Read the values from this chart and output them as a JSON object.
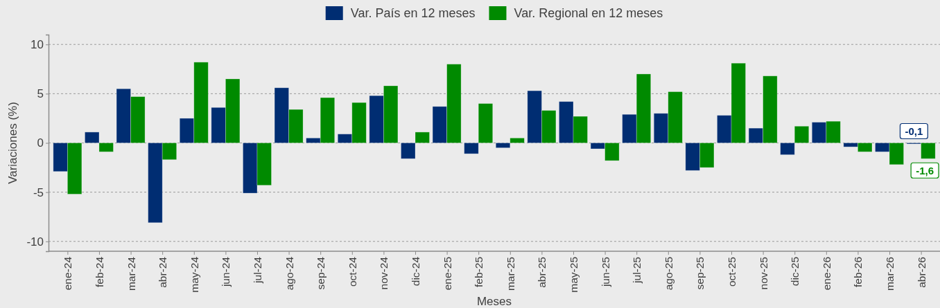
{
  "chart_data": {
    "type": "bar",
    "xlabel": "Meses",
    "ylabel": "Variaciones (%)",
    "categories": [
      "ene-24",
      "feb-24",
      "mar-24",
      "abr-24",
      "may-24",
      "jun-24",
      "jul-24",
      "ago-24",
      "sep-24",
      "oct-24",
      "nov-24",
      "dic-24",
      "ene-25",
      "feb-25",
      "mar-25",
      "abr-25",
      "may-25",
      "jun-25",
      "jul-25",
      "ago-25",
      "sep-25",
      "oct-25",
      "nov-25",
      "dic-25",
      "ene-26",
      "feb-26",
      "mar-26",
      "abr-26"
    ],
    "series": [
      {
        "name": "Var. País en 12 meses",
        "color": "#002d72",
        "values": [
          -2.9,
          1.1,
          5.5,
          -8.1,
          2.5,
          3.6,
          -5.1,
          5.6,
          0.5,
          0.9,
          4.8,
          -1.6,
          3.7,
          -1.1,
          -0.5,
          5.3,
          4.2,
          -0.6,
          2.9,
          3.0,
          -2.8,
          2.8,
          1.5,
          -1.2,
          2.1,
          -0.4,
          -0.9,
          -0.1
        ],
        "value_labels": [
          null,
          null,
          null,
          null,
          null,
          null,
          null,
          null,
          null,
          null,
          null,
          null,
          null,
          null,
          null,
          null,
          null,
          null,
          null,
          null,
          null,
          null,
          null,
          null,
          null,
          null,
          null,
          "-0,1"
        ]
      },
      {
        "name": "Var. Regional en 12 meses",
        "color": "#008a00",
        "values": [
          -5.2,
          -0.9,
          4.7,
          -1.7,
          8.2,
          6.5,
          -4.3,
          3.4,
          4.6,
          4.1,
          5.8,
          1.1,
          8.0,
          4.0,
          0.5,
          3.3,
          2.7,
          -1.8,
          7.0,
          5.2,
          -2.5,
          8.1,
          6.8,
          1.7,
          2.2,
          -0.9,
          -2.2,
          -1.6
        ],
        "value_labels": [
          null,
          null,
          null,
          null,
          null,
          null,
          null,
          null,
          null,
          null,
          null,
          null,
          null,
          null,
          null,
          null,
          null,
          null,
          null,
          null,
          null,
          null,
          null,
          null,
          null,
          null,
          null,
          "-1,6"
        ]
      }
    ],
    "ylim": [
      -11,
      11
    ],
    "yticks": [
      -10,
      -5,
      0,
      5,
      10
    ],
    "grid": "y",
    "legend": "top"
  }
}
